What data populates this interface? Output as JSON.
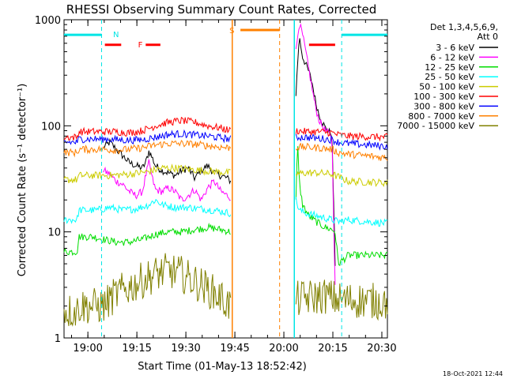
{
  "chart_data": {
    "type": "line",
    "title": "RHESSI Observing Summary Count Rates, Corrected",
    "xlabel": "Start Time (01-May-13 18:52:42)",
    "ylabel": "Corrected Count Rate (s⁻¹ detector⁻¹)",
    "x_unit": "minutes after 18:52:42",
    "xlim": [
      0,
      99
    ],
    "ylim": [
      1,
      1000
    ],
    "y_scale": "log",
    "x_ticks": [
      {
        "t": 7.3,
        "label": "19:00"
      },
      {
        "t": 22.3,
        "label": "19:15"
      },
      {
        "t": 37.3,
        "label": "19:30"
      },
      {
        "t": 52.3,
        "label": "19:45"
      },
      {
        "t": 67.3,
        "label": "20:00"
      },
      {
        "t": 82.3,
        "label": "20:15"
      },
      {
        "t": 97.3,
        "label": "20:30"
      }
    ],
    "y_ticks": [
      {
        "v": 1,
        "label": "1"
      },
      {
        "v": 10,
        "label": "10"
      },
      {
        "v": 100,
        "label": "100"
      },
      {
        "v": 1000,
        "label": "1000"
      }
    ],
    "grid": false,
    "legend": {
      "position": "right",
      "header": [
        "Det 1,3,4,5,6,9,",
        "Att 0"
      ],
      "entries": [
        {
          "name": "3 - 6 keV",
          "color": "#000000"
        },
        {
          "name": "6 - 12 keV",
          "color": "#ff00ff"
        },
        {
          "name": "12 - 25 keV",
          "color": "#00dd00"
        },
        {
          "name": "25 - 50 keV",
          "color": "#00ffff"
        },
        {
          "name": "50 - 100 keV",
          "color": "#cccc00"
        },
        {
          "name": "100 - 300 keV",
          "color": "#ff0000"
        },
        {
          "name": "300 - 800 keV",
          "color": "#0000ff"
        },
        {
          "name": "800 - 7000 keV",
          "color": "#ff8000"
        },
        {
          "name": "7000 - 15000 keV",
          "color": "#808000"
        }
      ]
    },
    "flags": [
      {
        "label": "N",
        "color": "#00e5e5",
        "segments": [
          [
            0,
            11.5
          ],
          [
            85,
            99
          ]
        ],
        "level": 720,
        "boundaries": [
          11.5,
          85
        ]
      },
      {
        "label": "F",
        "color": "#ff0000",
        "segments": [
          [
            12.5,
            17.5
          ],
          [
            25,
            29.5
          ],
          [
            75,
            83
          ]
        ],
        "level": 580
      },
      {
        "label": "S",
        "color": "#ff8000",
        "segments": [
          [
            54,
            66
          ]
        ],
        "level": 800,
        "boundaries": [
          66
        ]
      }
    ],
    "gaps": [
      [
        51.5,
        70.5
      ]
    ],
    "annotations": {
      "timestamp": "18-Oct-2021 12:44"
    },
    "series": [
      {
        "name": "3 - 6 keV",
        "points": [
          [
            12,
            62
          ],
          [
            14,
            70
          ],
          [
            16,
            60
          ],
          [
            18,
            52
          ],
          [
            20,
            45
          ],
          [
            22,
            42
          ],
          [
            24,
            40
          ],
          [
            25,
            45
          ],
          [
            26,
            58
          ],
          [
            27,
            50
          ],
          [
            28,
            42
          ],
          [
            30,
            38
          ],
          [
            32,
            36
          ],
          [
            34,
            34
          ],
          [
            36,
            38
          ],
          [
            38,
            40
          ],
          [
            40,
            32
          ],
          [
            42,
            38
          ],
          [
            44,
            42
          ],
          [
            46,
            36
          ],
          [
            48,
            34
          ],
          [
            50,
            32
          ],
          [
            51,
            30
          ]
        ]
      },
      {
        "name": "3 - 6 keV",
        "points": [
          [
            71,
            200
          ],
          [
            72,
            700
          ],
          [
            73,
            450
          ],
          [
            74,
            380
          ],
          [
            75,
            320
          ],
          [
            76,
            250
          ],
          [
            77,
            170
          ],
          [
            78,
            130
          ],
          [
            79,
            110
          ],
          [
            80,
            95
          ],
          [
            81,
            88
          ],
          [
            82,
            85
          ],
          [
            83,
            5
          ]
        ]
      },
      {
        "name": "6 - 12 keV",
        "points": [
          [
            12,
            38
          ],
          [
            14,
            35
          ],
          [
            16,
            30
          ],
          [
            18,
            28
          ],
          [
            20,
            24
          ],
          [
            22,
            22
          ],
          [
            24,
            24
          ],
          [
            25,
            34
          ],
          [
            26,
            45
          ],
          [
            27,
            32
          ],
          [
            28,
            25
          ],
          [
            30,
            24
          ],
          [
            32,
            26
          ],
          [
            34,
            24
          ],
          [
            36,
            20
          ],
          [
            38,
            22
          ],
          [
            40,
            25
          ],
          [
            42,
            20
          ],
          [
            44,
            26
          ],
          [
            46,
            30
          ],
          [
            48,
            24
          ],
          [
            50,
            22
          ],
          [
            51,
            21
          ]
        ]
      },
      {
        "name": "6 - 12 keV",
        "points": [
          [
            71,
            500
          ],
          [
            72,
            950
          ],
          [
            73,
            720
          ],
          [
            74,
            500
          ],
          [
            75,
            330
          ],
          [
            76,
            220
          ],
          [
            77,
            150
          ],
          [
            78,
            115
          ],
          [
            79,
            100
          ],
          [
            80,
            90
          ],
          [
            81,
            85
          ],
          [
            82,
            80
          ],
          [
            83,
            3
          ]
        ]
      },
      {
        "name": "12 - 25 keV",
        "points": [
          [
            0,
            6.5
          ],
          [
            4,
            6.5
          ],
          [
            4.5,
            9
          ],
          [
            9,
            9
          ],
          [
            12,
            8.5
          ],
          [
            16,
            8
          ],
          [
            20,
            8
          ],
          [
            24,
            8.5
          ],
          [
            28,
            9.5
          ],
          [
            32,
            10
          ],
          [
            36,
            10
          ],
          [
            40,
            10.5
          ],
          [
            44,
            11
          ],
          [
            48,
            10.5
          ],
          [
            51,
            10
          ]
        ]
      },
      {
        "name": "12 - 25 keV",
        "points": [
          [
            71,
            20
          ],
          [
            71.5,
            70
          ],
          [
            72,
            30
          ],
          [
            73,
            18
          ],
          [
            75,
            14
          ],
          [
            78,
            12
          ],
          [
            80,
            11
          ],
          [
            82,
            10.5
          ],
          [
            83,
            10
          ],
          [
            84,
            5
          ],
          [
            87,
            6
          ],
          [
            99,
            6
          ]
        ]
      },
      {
        "name": "25 - 50 keV",
        "points": [
          [
            0,
            13
          ],
          [
            4,
            13
          ],
          [
            4.5,
            16
          ],
          [
            10,
            16
          ],
          [
            14,
            17
          ],
          [
            18,
            16
          ],
          [
            22,
            16.5
          ],
          [
            26,
            18
          ],
          [
            28,
            20
          ],
          [
            30,
            18
          ],
          [
            34,
            17
          ],
          [
            38,
            17
          ],
          [
            42,
            16.5
          ],
          [
            46,
            16
          ],
          [
            51,
            15
          ]
        ]
      },
      {
        "name": "25 - 50 keV",
        "points": [
          [
            71,
            20
          ],
          [
            72,
            16
          ],
          [
            74,
            15
          ],
          [
            78,
            14
          ],
          [
            82,
            13
          ],
          [
            84,
            12.5
          ],
          [
            87,
            13
          ],
          [
            99,
            12
          ]
        ]
      },
      {
        "name": "50 - 100 keV",
        "points": [
          [
            0,
            31
          ],
          [
            4,
            31
          ],
          [
            4.5,
            34
          ],
          [
            14,
            34
          ],
          [
            20,
            35
          ],
          [
            26,
            37
          ],
          [
            30,
            40
          ],
          [
            34,
            40
          ],
          [
            38,
            39
          ],
          [
            42,
            38
          ],
          [
            46,
            37
          ],
          [
            51,
            36
          ]
        ]
      },
      {
        "name": "50 - 100 keV",
        "points": [
          [
            71,
            35
          ],
          [
            74,
            36
          ],
          [
            78,
            36
          ],
          [
            82,
            35
          ],
          [
            84,
            33
          ],
          [
            87,
            30
          ],
          [
            99,
            29
          ]
        ]
      },
      {
        "name": "100 - 300 keV",
        "points": [
          [
            0,
            78
          ],
          [
            4,
            78
          ],
          [
            4.5,
            88
          ],
          [
            12,
            88
          ],
          [
            16,
            88
          ],
          [
            20,
            86
          ],
          [
            24,
            90
          ],
          [
            28,
            100
          ],
          [
            32,
            108
          ],
          [
            36,
            112
          ],
          [
            40,
            108
          ],
          [
            44,
            100
          ],
          [
            48,
            95
          ],
          [
            51,
            90
          ]
        ]
      },
      {
        "name": "100 - 300 keV",
        "points": [
          [
            71,
            90
          ],
          [
            74,
            88
          ],
          [
            78,
            88
          ],
          [
            82,
            86
          ],
          [
            84,
            82
          ],
          [
            87,
            80
          ],
          [
            99,
            78
          ]
        ]
      },
      {
        "name": "300 - 800 keV",
        "points": [
          [
            0,
            70
          ],
          [
            4,
            70
          ],
          [
            4.5,
            75
          ],
          [
            12,
            75
          ],
          [
            16,
            74
          ],
          [
            20,
            73
          ],
          [
            24,
            74
          ],
          [
            28,
            78
          ],
          [
            32,
            83
          ],
          [
            36,
            84
          ],
          [
            40,
            82
          ],
          [
            44,
            80
          ],
          [
            48,
            77
          ],
          [
            51,
            75
          ]
        ]
      },
      {
        "name": "300 - 800 keV",
        "points": [
          [
            71,
            78
          ],
          [
            74,
            78
          ],
          [
            78,
            76
          ],
          [
            82,
            74
          ],
          [
            84,
            70
          ],
          [
            87,
            68
          ],
          [
            99,
            64
          ]
        ]
      },
      {
        "name": "800 - 7000 keV",
        "points": [
          [
            0,
            56
          ],
          [
            4,
            56
          ],
          [
            4.5,
            60
          ],
          [
            12,
            60
          ],
          [
            16,
            59
          ],
          [
            20,
            60
          ],
          [
            24,
            62
          ],
          [
            28,
            66
          ],
          [
            32,
            68
          ],
          [
            36,
            68
          ],
          [
            40,
            67
          ],
          [
            44,
            65
          ],
          [
            48,
            63
          ],
          [
            51,
            62
          ]
        ]
      },
      {
        "name": "800 - 7000 keV",
        "points": [
          [
            71,
            63
          ],
          [
            74,
            63
          ],
          [
            78,
            62
          ],
          [
            82,
            60
          ],
          [
            84,
            56
          ],
          [
            87,
            54
          ],
          [
            99,
            50
          ]
        ]
      },
      {
        "name": "7000 - 15000 keV",
        "points": [
          [
            0,
            1.8
          ],
          [
            4,
            1.8
          ],
          [
            4.5,
            2
          ],
          [
            12,
            2
          ],
          [
            16,
            2.6
          ],
          [
            18,
            2.8
          ],
          [
            20,
            3
          ],
          [
            24,
            3.5
          ],
          [
            28,
            4
          ],
          [
            32,
            4.3
          ],
          [
            36,
            4
          ],
          [
            40,
            3.4
          ],
          [
            44,
            2.9
          ],
          [
            48,
            2.4
          ],
          [
            51,
            2
          ]
        ]
      },
      {
        "name": "7000 - 15000 keV",
        "points": [
          [
            71,
            2.3
          ],
          [
            75,
            2.4
          ],
          [
            80,
            2.5
          ],
          [
            84,
            2.3
          ],
          [
            99,
            2.2
          ]
        ]
      }
    ]
  }
}
